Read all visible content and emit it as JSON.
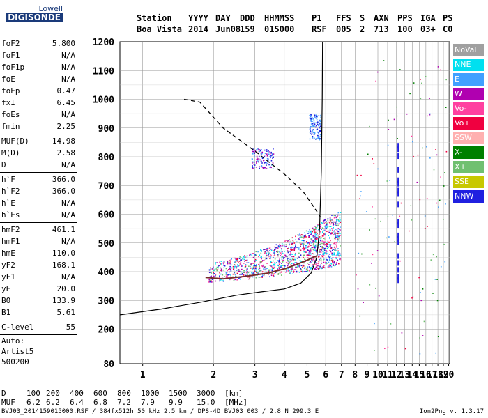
{
  "logo": {
    "top": "Lowell",
    "bottom": "DIGISONDE"
  },
  "header": {
    "line1": [
      "Station",
      "YYYY",
      "DAY",
      "DDD",
      "HHMMSS",
      "P1",
      "FFS",
      "S",
      "AXN",
      "PPS",
      "IGA",
      "PS"
    ],
    "line2": [
      "Boa Vista",
      "2014",
      "Jun08",
      "159",
      "015000",
      "RSF",
      "005",
      "2",
      "713",
      "100",
      "03+",
      "C0"
    ]
  },
  "params": [
    {
      "group": [
        {
          "name": "foF2",
          "value": "5.800"
        },
        {
          "name": "foF1",
          "value": "N/A"
        },
        {
          "name": "foF1p",
          "value": "N/A"
        },
        {
          "name": "foE",
          "value": "N/A"
        },
        {
          "name": "foEp",
          "value": "0.47"
        },
        {
          "name": "fxI",
          "value": "6.45"
        },
        {
          "name": "foEs",
          "value": "N/A"
        },
        {
          "name": "fmin",
          "value": "2.25"
        }
      ]
    },
    {
      "group": [
        {
          "name": "MUF(D)",
          "value": "14.98"
        },
        {
          "name": "M(D)",
          "value": "2.58"
        },
        {
          "name": "D",
          "value": "N/A"
        }
      ]
    },
    {
      "group": [
        {
          "name": "h`F",
          "value": "366.0"
        },
        {
          "name": "h`F2",
          "value": "366.0"
        },
        {
          "name": "h`E",
          "value": "N/A"
        },
        {
          "name": "h`Es",
          "value": "N/A"
        }
      ]
    },
    {
      "group": [
        {
          "name": "hmF2",
          "value": "461.1"
        },
        {
          "name": "hmF1",
          "value": "N/A"
        },
        {
          "name": "hmE",
          "value": "110.0"
        },
        {
          "name": "yF2",
          "value": "168.1"
        },
        {
          "name": "yF1",
          "value": "N/A"
        },
        {
          "name": "yE",
          "value": "20.0"
        },
        {
          "name": "B0",
          "value": "133.9"
        },
        {
          "name": "B1",
          "value": "5.61"
        }
      ]
    },
    {
      "group": [
        {
          "name": "C-level",
          "value": "55"
        }
      ]
    }
  ],
  "auto": [
    "Auto:",
    "Artist5",
    "500200"
  ],
  "legend": [
    {
      "label": "NoVal",
      "color": "#a0a0a0"
    },
    {
      "label": "NNE",
      "color": "#00e0f0"
    },
    {
      "label": "E",
      "color": "#40a0ff"
    },
    {
      "label": "W",
      "color": "#b000b0"
    },
    {
      "label": "Vo-",
      "color": "#ff40a0"
    },
    {
      "label": "Vo+",
      "color": "#f00040"
    },
    {
      "label": "SSW",
      "color": "#ffb0b0"
    },
    {
      "label": "X-",
      "color": "#008000"
    },
    {
      "label": "X+",
      "color": "#70c070"
    },
    {
      "label": "SSE",
      "color": "#c8c800"
    },
    {
      "label": "NNW",
      "color": "#2020e0"
    }
  ],
  "muf_table": {
    "d_label": "D",
    "muf_label": "MUF",
    "d_values": [
      "100",
      "200",
      "400",
      "600",
      "800",
      "1000",
      "1500",
      "3000",
      "[km]"
    ],
    "muf_values": [
      "6.2",
      "6.2",
      "6.4",
      "6.8",
      "7.2",
      "7.9",
      "9.9",
      "15.0",
      "[MHz]"
    ]
  },
  "footer": "BVJ03_2014159015000.RSF / 384fx512h 50 kHz 2.5 km / DPS-4D BVJ03 003 / 2.8 N 299.3 E",
  "version": "Ion2Png v. 1.3.17",
  "chart_data": {
    "type": "scatter",
    "xlim": [
      0.8,
      20.2
    ],
    "ylim": [
      80,
      1200
    ],
    "x_ticks": [
      "1",
      "2",
      "3",
      "4",
      "5",
      "6",
      "7",
      "8",
      "9",
      "10",
      "11",
      "12",
      "13",
      "14",
      "15",
      "16",
      "17",
      "18",
      "19",
      "20"
    ],
    "y_ticks": [
      "80",
      "200",
      "300",
      "400",
      "500",
      "600",
      "700",
      "800",
      "900",
      "1000",
      "1100",
      "1200"
    ],
    "grid": true,
    "profile_curve": {
      "x": [
        0.8,
        1.2,
        1.8,
        2.5,
        3.2,
        4.0,
        4.7,
        5.2,
        5.5,
        5.65,
        5.75,
        5.8,
        5.82
      ],
      "y": [
        250,
        270,
        295,
        318,
        330,
        340,
        360,
        395,
        450,
        550,
        750,
        1000,
        1200
      ]
    },
    "trace_curve": {
      "x": [
        1.85,
        2.2,
        2.8,
        3.4,
        4.0,
        4.5,
        5.0,
        5.3,
        5.5
      ],
      "y": [
        380,
        375,
        385,
        395,
        410,
        425,
        440,
        450,
        455
      ]
    },
    "muf_curve": {
      "x": [
        1.5,
        1.75,
        2.2,
        3.0,
        4.0,
        4.8,
        5.4,
        5.7
      ],
      "y": [
        1000,
        990,
        900,
        820,
        740,
        680,
        620,
        590
      ]
    },
    "echo_clusters": [
      {
        "x_range": [
          1.9,
          6.9
        ],
        "y_range": [
          370,
          620
        ],
        "color_mix": [
          "#ff40a0",
          "#2020e0",
          "#f00040",
          "#b000b0",
          "#40a0ff",
          "#00e0f0",
          "#70c070"
        ]
      },
      {
        "x_range": [
          2.9,
          3.6
        ],
        "y_range": [
          760,
          830
        ],
        "color_mix": [
          "#2020e0",
          "#b000b0",
          "#40a0ff"
        ]
      },
      {
        "x_range": [
          5.1,
          5.7
        ],
        "y_range": [
          860,
          950
        ],
        "color_mix": [
          "#2020e0",
          "#40a0ff"
        ]
      }
    ],
    "vertical_segment": {
      "x": 12.2,
      "y": [
        380,
        850
      ],
      "color": "#2020e0"
    }
  }
}
